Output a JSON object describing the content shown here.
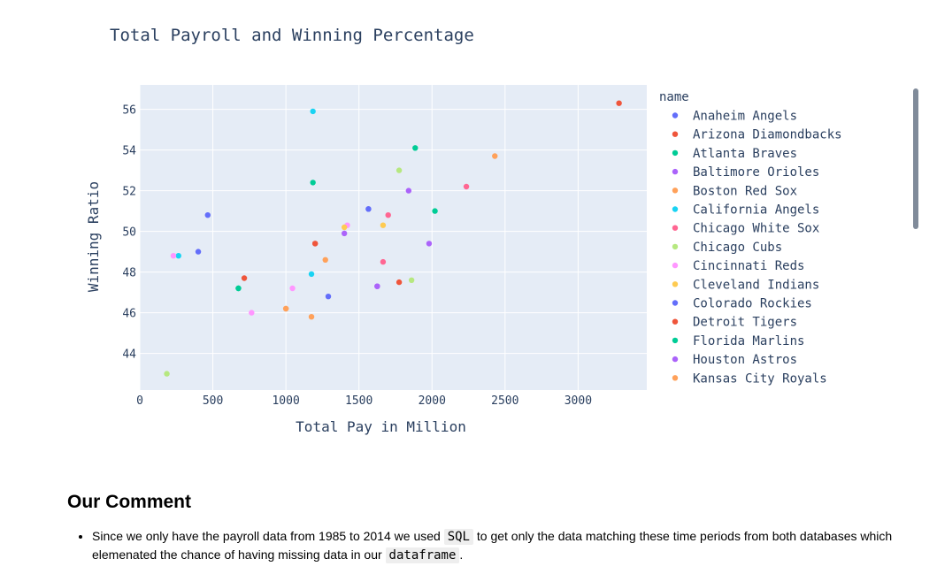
{
  "chart_data": {
    "type": "scatter",
    "title": "Total Payroll and Winning Percentage",
    "xlabel": "Total Pay in Million",
    "ylabel": "Winning Ratio",
    "xlim": [
      0,
      3470
    ],
    "ylim": [
      42.2,
      57.2
    ],
    "xticks": [
      0,
      500,
      1000,
      1500,
      2000,
      2500,
      3000
    ],
    "yticks": [
      44,
      46,
      48,
      50,
      52,
      54,
      56
    ],
    "grid": true,
    "legend_title": "name",
    "legend_position": "right",
    "series": [
      {
        "name": "Anaheim Angels",
        "color": "#636efa",
        "points": [
          [
            465,
            50.8
          ],
          [
            400,
            49.0
          ],
          [
            1565,
            51.1
          ],
          [
            1290,
            46.8
          ]
        ]
      },
      {
        "name": "Arizona Diamondbacks",
        "color": "#ef553b",
        "points": [
          [
            3280,
            56.3
          ],
          [
            715,
            47.7
          ],
          [
            1200,
            49.4
          ],
          [
            1775,
            47.5
          ]
        ]
      },
      {
        "name": "Atlanta Braves",
        "color": "#00cc96",
        "points": [
          [
            1185,
            52.4
          ],
          [
            1885,
            54.1
          ],
          [
            675,
            47.2
          ],
          [
            2020,
            51.0
          ]
        ]
      },
      {
        "name": "Baltimore Orioles",
        "color": "#ab63fa",
        "points": [
          [
            1840,
            52.0
          ],
          [
            1980,
            49.4
          ],
          [
            1400,
            49.9
          ],
          [
            1625,
            47.3
          ]
        ]
      },
      {
        "name": "Boston Red Sox",
        "color": "#ffa15a",
        "points": [
          [
            2430,
            53.7
          ],
          [
            1270,
            48.6
          ],
          [
            1000,
            46.2
          ],
          [
            1175,
            45.8
          ]
        ]
      },
      {
        "name": "California Angels",
        "color": "#19d3f3",
        "points": [
          [
            1185,
            55.9
          ],
          [
            265,
            48.8
          ],
          [
            1175,
            47.9
          ]
        ]
      },
      {
        "name": "Chicago White Sox",
        "color": "#ff6692",
        "points": [
          [
            2235,
            52.2
          ],
          [
            1700,
            50.8
          ],
          [
            1665,
            48.5
          ]
        ]
      },
      {
        "name": "Chicago Cubs",
        "color": "#b6e880",
        "points": [
          [
            1775,
            53.0
          ],
          [
            1860,
            47.6
          ],
          [
            185,
            43.0
          ]
        ]
      },
      {
        "name": "Cincinnati Reds",
        "color": "#ff97ff",
        "points": [
          [
            1420,
            50.3
          ],
          [
            230,
            48.8
          ],
          [
            1045,
            47.2
          ],
          [
            765,
            46.0
          ]
        ]
      },
      {
        "name": "Cleveland Indians",
        "color": "#fecb52",
        "points": [
          [
            1400,
            50.2
          ],
          [
            1665,
            50.3
          ]
        ]
      },
      {
        "name": "Colorado Rockies",
        "color": "#636efa",
        "points": [
          [
            1565,
            51.1
          ]
        ]
      },
      {
        "name": "Detroit Tigers",
        "color": "#ef553b",
        "points": [
          [
            1200,
            49.4
          ]
        ]
      },
      {
        "name": "Florida Marlins",
        "color": "#00cc96",
        "points": [
          [
            675,
            47.2
          ]
        ]
      },
      {
        "name": "Houston Astros",
        "color": "#ab63fa",
        "points": [
          [
            1625,
            47.3
          ]
        ]
      },
      {
        "name": "Kansas City Royals",
        "color": "#ffa15a",
        "points": [
          [
            1000,
            46.2
          ]
        ]
      }
    ]
  },
  "comment": {
    "heading": "Our Comment",
    "bullet_part1": "Since we only have the payroll data from 1985 to 2014 we used ",
    "code1": "SQL",
    "bullet_part2": " to get only the data matching these time periods from both databases which elemenated the chance of having missing data in our ",
    "code2": "dataframe",
    "bullet_part3": "."
  }
}
